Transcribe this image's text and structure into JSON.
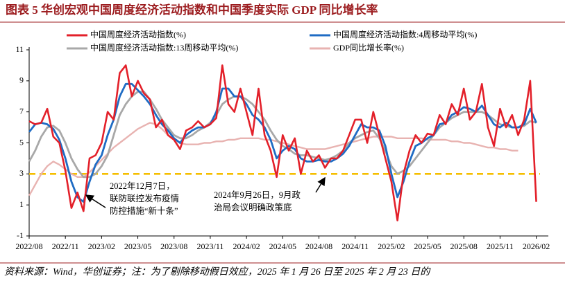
{
  "chart_data": {
    "type": "line",
    "title": "图表 5    华创宏观中国周度经济活动指数和中国季度实际 GDP 同比增长率",
    "source": "资料来源：Wind，华创证券；注：为了剔除移动假日效应，2025 年 1 月 26 日至 2025 年 2 月 23 日的",
    "annotations": [
      {
        "lines": [
          "2022年12月7日，",
          "联防联控发布疫情",
          "防控措施“新十条”"
        ]
      },
      {
        "lines": [
          "2024年9月26日，9月政",
          "治局会议明确政策底"
        ]
      }
    ],
    "reference_line": {
      "value": 3,
      "color": "#f5be00"
    },
    "x": [
      0,
      0.5,
      1,
      1.5,
      2,
      2.5,
      3,
      3.5,
      4,
      4.5,
      5,
      5.5,
      6,
      6.5,
      7,
      7.5,
      8,
      8.5,
      9,
      9.5,
      10,
      10.5,
      11,
      11.5,
      12,
      12.5,
      13,
      13.5,
      14,
      14.5,
      15,
      15.5,
      16,
      16.5,
      17,
      17.5,
      18,
      18.5,
      19,
      19.5,
      20,
      20.5,
      21,
      21.5,
      22,
      22.5,
      23,
      23.5,
      24,
      24.5,
      25,
      25.5,
      26,
      26.5,
      27,
      27.5,
      28,
      28.5,
      29,
      29.5,
      30,
      30.5,
      31,
      31.5,
      32,
      32.5,
      33,
      33.5,
      34,
      34.5,
      35,
      35.5,
      36,
      36.5,
      37,
      37.5,
      38,
      38.5,
      39,
      39.5,
      40,
      40.5,
      41,
      41.5,
      42
    ],
    "xlim": [
      0,
      43
    ],
    "xticks": [
      {
        "value": 0,
        "label": "2022/08"
      },
      {
        "value": 3,
        "label": "2022/11"
      },
      {
        "value": 6,
        "label": "2023/02"
      },
      {
        "value": 9,
        "label": "2023/05"
      },
      {
        "value": 12,
        "label": "2023/08"
      },
      {
        "value": 15,
        "label": "2023/11"
      },
      {
        "value": 18,
        "label": "2024/02"
      },
      {
        "value": 21,
        "label": "2024/05"
      },
      {
        "value": 24,
        "label": "2024/08"
      },
      {
        "value": 27,
        "label": "2024/11"
      },
      {
        "value": 30,
        "label": "2025/02"
      },
      {
        "value": 33,
        "label": "2025/05"
      },
      {
        "value": 36,
        "label": "2025/08"
      },
      {
        "value": 39,
        "label": "2025/11"
      },
      {
        "value": 42,
        "label": "2026/02"
      }
    ],
    "ylim": [
      -1,
      11
    ],
    "yticks": [
      -1,
      1,
      3,
      5,
      7,
      9,
      11
    ],
    "series": [
      {
        "name": "中国周度经济活动指数(%)",
        "color": "#e3202a",
        "width": 2.6,
        "values": [
          6.4,
          6.2,
          6.3,
          7.2,
          5.4,
          5.0,
          3.2,
          0.8,
          1.8,
          0.6,
          4.0,
          4.2,
          5.0,
          7.0,
          6.5,
          9.5,
          10.0,
          8.0,
          9.0,
          8.2,
          7.8,
          6.0,
          6.5,
          5.5,
          5.2,
          4.6,
          5.8,
          6.0,
          6.4,
          6.0,
          6.2,
          6.6,
          10.0,
          7.5,
          7.0,
          8.5,
          7.0,
          5.5,
          8.5,
          5.5,
          4.5,
          2.8,
          5.5,
          4.5,
          5.3,
          3.0,
          4.5,
          3.8,
          4.2,
          3.4,
          4.0,
          4.0,
          4.5,
          5.5,
          6.5,
          6.5,
          5.0,
          7.0,
          5.5,
          4.0,
          2.5,
          0.0,
          3.0,
          4.5,
          5.5,
          5.0,
          5.6,
          5.5,
          6.8,
          6.2,
          7.5,
          6.8,
          8.5,
          6.5,
          7.0,
          8.8,
          6.0,
          4.8,
          7.2,
          6.0,
          6.8,
          5.5,
          6.5,
          9.0,
          1.2
        ]
      },
      {
        "name": "中国周度经济活动指数:4周移动平均(%)",
        "color": "#1f6cc4",
        "width": 2.8,
        "values": [
          5.7,
          6.2,
          6.3,
          6.2,
          5.9,
          5.2,
          4.0,
          2.5,
          1.5,
          1.2,
          2.5,
          3.6,
          4.2,
          5.5,
          6.5,
          8.0,
          8.8,
          8.8,
          8.4,
          8.0,
          7.5,
          6.8,
          6.2,
          5.8,
          5.3,
          5.0,
          5.5,
          5.8,
          6.0,
          6.0,
          6.2,
          7.0,
          8.5,
          8.5,
          8.0,
          8.0,
          7.5,
          6.8,
          6.5,
          6.0,
          5.2,
          4.0,
          4.5,
          4.8,
          4.6,
          4.0,
          3.8,
          3.8,
          3.9,
          3.8,
          3.8,
          4.0,
          4.3,
          4.8,
          5.5,
          6.2,
          6.0,
          6.0,
          5.8,
          4.8,
          3.0,
          1.5,
          2.5,
          3.8,
          4.8,
          5.0,
          5.3,
          5.5,
          6.2,
          6.3,
          6.8,
          7.0,
          7.3,
          7.2,
          7.0,
          7.4,
          6.8,
          6.2,
          6.0,
          6.3,
          6.0,
          6.0,
          6.2,
          7.2,
          6.3
        ]
      },
      {
        "name": "中国周度经济活动指数:13周移动平均(%)",
        "color": "#a8a8a8",
        "width": 2.8,
        "values": [
          3.8,
          4.5,
          5.4,
          6.0,
          6.1,
          5.8,
          5.0,
          4.0,
          3.3,
          2.8,
          2.8,
          3.0,
          3.5,
          4.2,
          5.5,
          6.8,
          7.5,
          8.0,
          8.3,
          8.3,
          7.8,
          7.2,
          6.5,
          6.0,
          5.5,
          5.3,
          5.3,
          5.5,
          5.8,
          6.0,
          6.3,
          6.8,
          7.5,
          7.8,
          8.0,
          8.0,
          7.8,
          7.5,
          7.0,
          6.5,
          5.8,
          5.2,
          4.8,
          4.6,
          4.3,
          4.2,
          4.2,
          4.1,
          4.0,
          3.9,
          4.0,
          4.2,
          4.5,
          5.0,
          5.3,
          5.5,
          5.7,
          5.8,
          5.3,
          4.5,
          3.5,
          3.0,
          3.2,
          3.5,
          4.0,
          4.5,
          5.0,
          5.5,
          6.0,
          6.3,
          6.6,
          6.8,
          7.0,
          7.0,
          7.0,
          7.0,
          6.8,
          6.5,
          6.2,
          6.1,
          6.0,
          6.0,
          6.1,
          6.4,
          6.3
        ]
      },
      {
        "name": "GDP同比增长率(%)",
        "color": "#e8b3b1",
        "width": 2.4,
        "values": [
          1.6,
          2.3,
          3.0,
          3.5,
          3.8,
          3.6,
          3.3,
          3.0,
          2.8,
          2.8,
          3.1,
          3.5,
          3.9,
          4.3,
          4.7,
          5.0,
          5.3,
          5.6,
          5.9,
          6.1,
          6.3,
          6.2,
          5.9,
          5.5,
          5.2,
          5.0,
          4.9,
          4.9,
          4.9,
          5.0,
          5.0,
          5.1,
          5.1,
          5.2,
          5.2,
          5.3,
          5.3,
          5.3,
          5.3,
          5.2,
          5.2,
          5.1,
          5.0,
          4.9,
          4.8,
          4.7,
          4.6,
          4.6,
          4.6,
          4.6,
          4.7,
          4.8,
          4.9,
          5.0,
          5.1,
          5.2,
          5.3,
          5.4,
          5.4,
          5.4,
          5.4,
          5.3,
          5.3,
          5.3,
          5.3,
          5.3,
          5.2,
          5.2,
          5.2,
          5.2,
          5.1,
          5.1,
          5.0,
          5.0,
          4.9,
          4.8,
          4.7,
          4.7,
          4.6,
          4.6,
          4.5,
          4.5,
          null,
          null,
          null
        ]
      }
    ]
  }
}
